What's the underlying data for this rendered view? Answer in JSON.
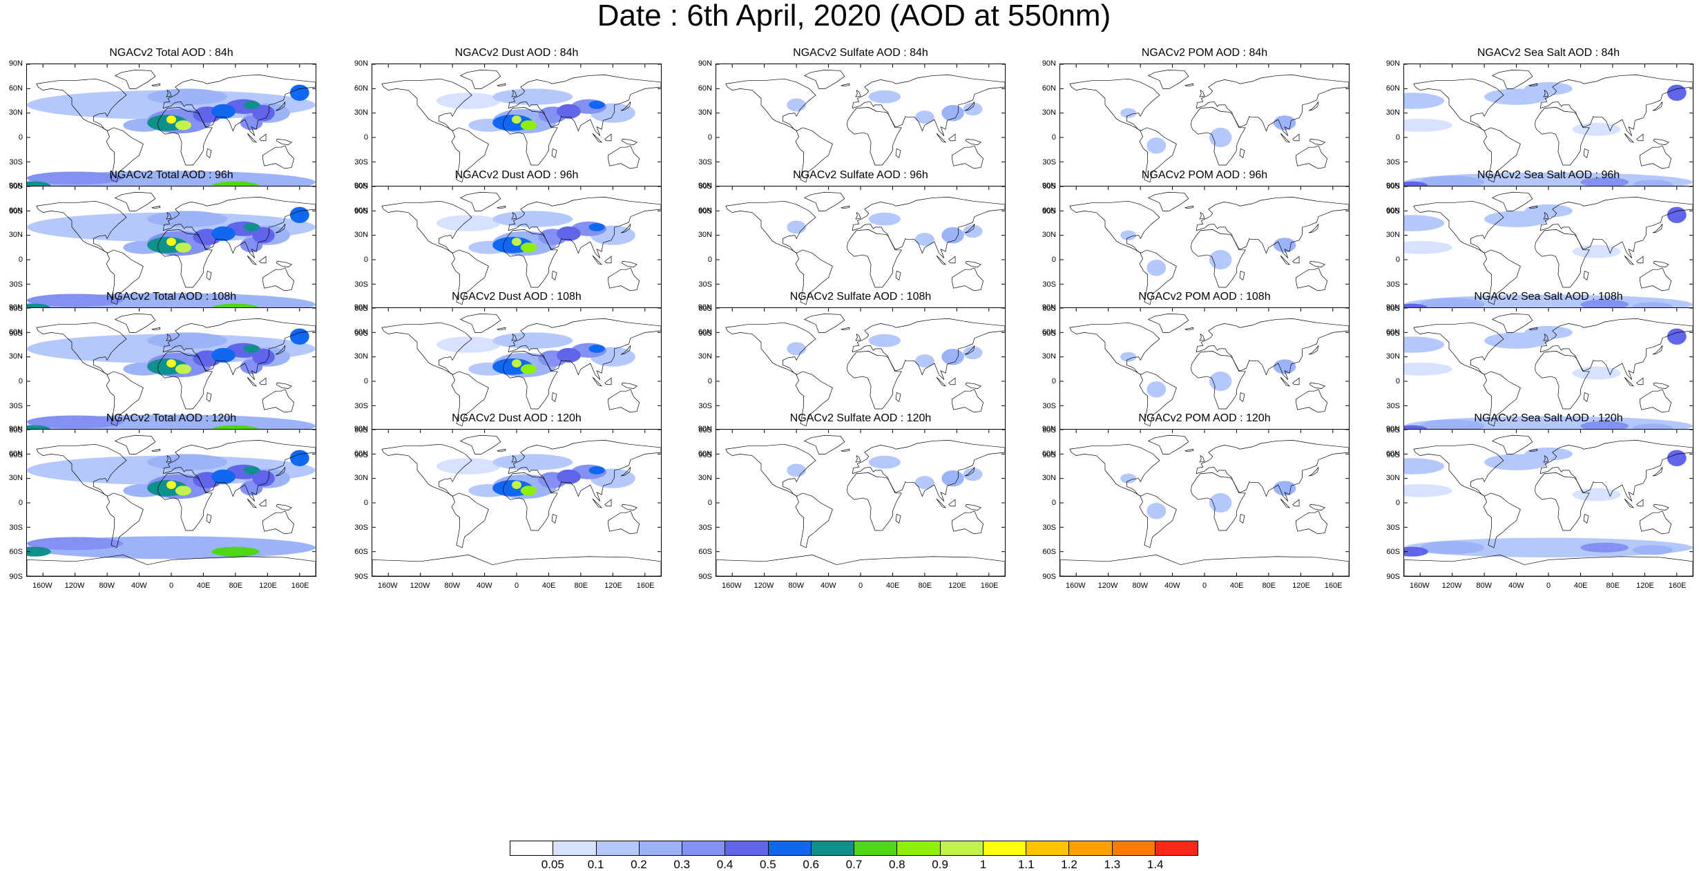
{
  "title": "Date : 6th April, 2020 (AOD at 550nm)",
  "lat_ticks": [
    "90N",
    "60N",
    "30N",
    "0",
    "30S",
    "60S",
    "90S"
  ],
  "lon_ticks": [
    "160W",
    "120W",
    "80W",
    "40W",
    "0",
    "40E",
    "80E",
    "120E",
    "160E"
  ],
  "colorbar": {
    "labels": [
      "0.05",
      "0.1",
      "0.2",
      "0.3",
      "0.4",
      "0.5",
      "0.6",
      "0.7",
      "0.8",
      "0.9",
      "1",
      "1.1",
      "1.2",
      "1.3",
      "1.4"
    ],
    "colors": [
      "#ffffff",
      "#d6e2ff",
      "#b5c8fb",
      "#9cb3f7",
      "#8391f2",
      "#6065ea",
      "#0f67f2",
      "#10908d",
      "#4fd614",
      "#8ef00a",
      "#c2f34c",
      "#ffff10",
      "#ffc400",
      "#ff9f00",
      "#ff7a00",
      "#f72a1a"
    ]
  },
  "panels": [
    {
      "title": "NGACv2 Total AOD : 84h",
      "species": "total"
    },
    {
      "title": "NGACv2 Dust AOD : 84h",
      "species": "dust"
    },
    {
      "title": "NGACv2 Sulfate AOD : 84h",
      "species": "sulfate"
    },
    {
      "title": "NGACv2 POM AOD : 84h",
      "species": "pom"
    },
    {
      "title": "NGACv2 Sea Salt AOD : 84h",
      "species": "seasalt"
    },
    {
      "title": "NGACv2 Total AOD : 96h",
      "species": "total"
    },
    {
      "title": "NGACv2 Dust AOD : 96h",
      "species": "dust"
    },
    {
      "title": "NGACv2 Sulfate AOD : 96h",
      "species": "sulfate"
    },
    {
      "title": "NGACv2 POM AOD : 96h",
      "species": "pom"
    },
    {
      "title": "NGACv2 Sea Salt AOD : 96h",
      "species": "seasalt"
    },
    {
      "title": "NGACv2 Total AOD : 108h",
      "species": "total"
    },
    {
      "title": "NGACv2 Dust AOD : 108h",
      "species": "dust"
    },
    {
      "title": "NGACv2 Sulfate AOD : 108h",
      "species": "sulfate"
    },
    {
      "title": "NGACv2 POM AOD : 108h",
      "species": "pom"
    },
    {
      "title": "NGACv2 Sea Salt AOD : 108h",
      "species": "seasalt"
    },
    {
      "title": "NGACv2 Total AOD : 120h",
      "species": "total"
    },
    {
      "title": "NGACv2 Dust AOD : 120h",
      "species": "dust"
    },
    {
      "title": "NGACv2 Sulfate AOD : 120h",
      "species": "sulfate"
    },
    {
      "title": "NGACv2 POM AOD : 120h",
      "species": "pom"
    },
    {
      "title": "NGACv2 Sea Salt  AOD : 120h",
      "species": "seasalt"
    }
  ]
}
